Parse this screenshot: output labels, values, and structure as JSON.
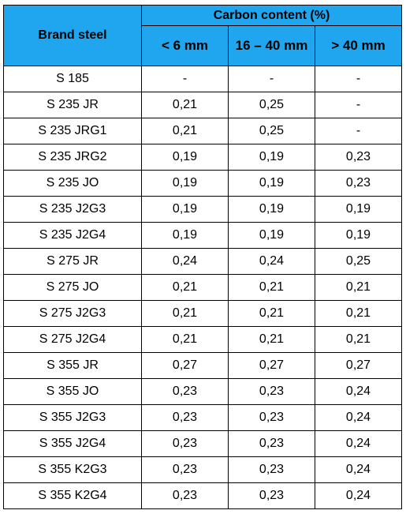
{
  "table": {
    "brand_header": "Brand steel",
    "group_header": "Carbon content (%)",
    "columns": [
      "< 6 mm",
      "16 – 40 mm",
      "> 40 mm"
    ],
    "rows": [
      {
        "brand": "S 185",
        "values": [
          "-",
          "-",
          "-"
        ]
      },
      {
        "brand": "S 235 JR",
        "values": [
          "0,21",
          "0,25",
          "-"
        ]
      },
      {
        "brand": "S 235 JRG1",
        "values": [
          "0,21",
          "0,25",
          "-"
        ]
      },
      {
        "brand": "S 235 JRG2",
        "values": [
          "0,19",
          "0,19",
          "0,23"
        ]
      },
      {
        "brand": "S 235 JO",
        "values": [
          "0,19",
          "0,19",
          "0,23"
        ]
      },
      {
        "brand": "S 235 J2G3",
        "values": [
          "0,19",
          "0,19",
          "0,19"
        ]
      },
      {
        "brand": "S 235 J2G4",
        "values": [
          "0,19",
          "0,19",
          "0,19"
        ]
      },
      {
        "brand": "S 275 JR",
        "values": [
          "0,24",
          "0,24",
          "0,25"
        ]
      },
      {
        "brand": "S 275 JO",
        "values": [
          "0,21",
          "0,21",
          "0,21"
        ]
      },
      {
        "brand": "S 275 J2G3",
        "values": [
          "0,21",
          "0,21",
          "0,21"
        ]
      },
      {
        "brand": "S 275 J2G4",
        "values": [
          "0,21",
          "0,21",
          "0,21"
        ]
      },
      {
        "brand": "S 355 JR",
        "values": [
          "0,27",
          "0,27",
          "0,27"
        ]
      },
      {
        "brand": "S 355 JO",
        "values": [
          "0,23",
          "0,23",
          "0,24"
        ]
      },
      {
        "brand": "S 355 J2G3",
        "values": [
          "0,23",
          "0,23",
          "0,24"
        ]
      },
      {
        "brand": "S 355 J2G4",
        "values": [
          "0,23",
          "0,23",
          "0,24"
        ]
      },
      {
        "brand": "S 355 K2G3",
        "values": [
          "0,23",
          "0,23",
          "0,24"
        ]
      },
      {
        "brand": "S 355 K2G4",
        "values": [
          "0,23",
          "0,23",
          "0,24"
        ]
      }
    ]
  },
  "colors": {
    "header_bg": "#1fa6ee",
    "border": "#000000"
  }
}
